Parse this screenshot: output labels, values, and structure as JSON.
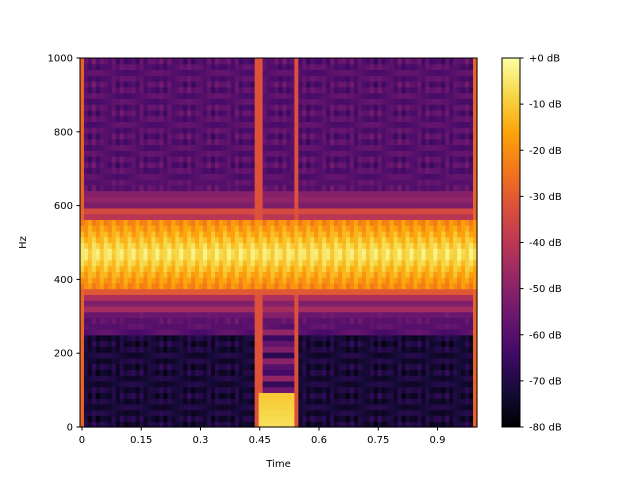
{
  "chart_data": {
    "type": "heatmap",
    "title": "",
    "xlabel": "Time",
    "ylabel": "Hz",
    "xlim": [
      -0.005,
      1.0
    ],
    "ylim": [
      0,
      1000
    ],
    "x_ticks": [
      0,
      0.15,
      0.3,
      0.45,
      0.6,
      0.75,
      0.9
    ],
    "x_tick_labels": [
      "0",
      "0.15",
      "0.3",
      "0.45",
      "0.6",
      "0.75",
      "0.9"
    ],
    "y_ticks": [
      0,
      200,
      400,
      600,
      800,
      1000
    ],
    "y_tick_labels": [
      "0",
      "200",
      "400",
      "600",
      "800",
      "1000"
    ],
    "colorbar": {
      "range_db": [
        -80,
        0
      ],
      "ticks": [
        0,
        -10,
        -20,
        -30,
        -40,
        -50,
        -60,
        -70,
        -80
      ],
      "tick_labels": [
        "+0 dB",
        "-10 dB",
        "-20 dB",
        "-30 dB",
        "-40 dB",
        "-50 dB",
        "-60 dB",
        "-70 dB",
        "-80 dB"
      ],
      "colormap": "inferno"
    },
    "grid": false,
    "features": {
      "tone_band_hz": [
        380,
        580
      ],
      "tone_center_hz": 470,
      "tone_level_db": -5,
      "background_level_db": -72,
      "sidelobe_period_hz": 22,
      "edge_transients_time": [
        0.0,
        0.993
      ],
      "click_times": [
        0.448,
        0.54
      ],
      "low_freq_burst_time": [
        0.45,
        0.54
      ],
      "low_freq_burst_hz": [
        0,
        95
      ]
    }
  }
}
